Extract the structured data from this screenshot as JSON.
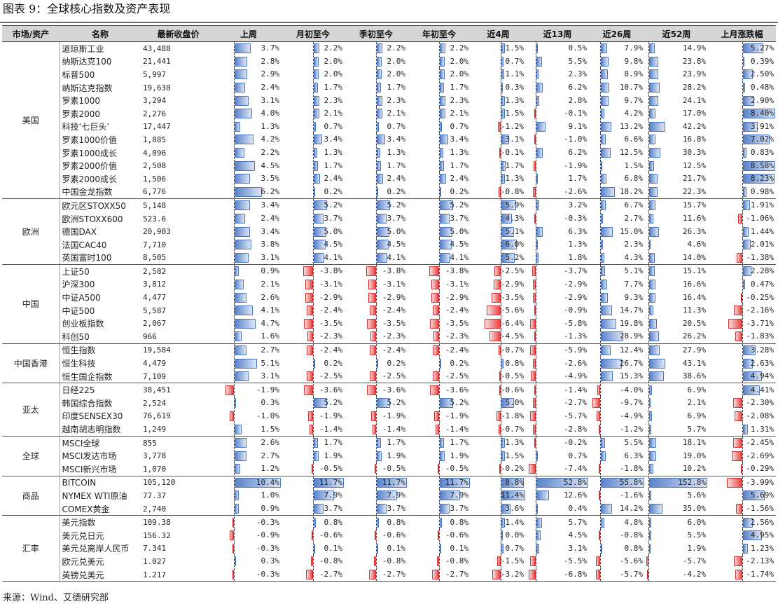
{
  "title": "图表 9：全球核心指数及资产表现",
  "source": "来源：Wind、艾德研究部",
  "accent": {
    "positive_bar": "#5b83c9",
    "negative_bar": "#e84242"
  },
  "columns": [
    "市场/资产",
    "名称",
    "最新收盘价",
    "上周",
    "月初至今",
    "季初至今",
    "年初至今",
    "近4周",
    "近13周",
    "近26周",
    "近52周",
    "上月涨跌幅"
  ],
  "groups": [
    {
      "market": "美国",
      "rows": [
        {
          "name": "道琼斯工业",
          "price": "43,488",
          "values": [
            "3.7%",
            "2.2%",
            "2.2%",
            "2.2%",
            "1.5%",
            "0.5%",
            "7.9%",
            "14.9%",
            "5.27%"
          ]
        },
        {
          "name": "纳斯达克100",
          "price": "21,441",
          "values": [
            "2.8%",
            "2.0%",
            "2.0%",
            "2.0%",
            "0.7%",
            "5.5%",
            "9.8%",
            "23.8%",
            "0.39%"
          ]
        },
        {
          "name": "标普500",
          "price": "5,997",
          "values": [
            "2.9%",
            "2.0%",
            "2.0%",
            "2.0%",
            "1.1%",
            "2.3%",
            "8.9%",
            "23.9%",
            "2.50%"
          ]
        },
        {
          "name": "纳斯达克指数",
          "price": "19,630",
          "values": [
            "2.4%",
            "1.7%",
            "1.7%",
            "1.7%",
            "0.3%",
            "6.2%",
            "10.7%",
            "28.2%",
            "0.48%"
          ]
        },
        {
          "name": "罗素1000",
          "price": "3,294",
          "values": [
            "3.1%",
            "2.3%",
            "2.3%",
            "2.3%",
            "1.3%",
            "2.8%",
            "9.7%",
            "24.1%",
            "2.90%"
          ]
        },
        {
          "name": "罗素2000",
          "price": "2,276",
          "values": [
            "4.0%",
            "2.1%",
            "2.1%",
            "2.1%",
            "1.5%",
            "-0.1%",
            "4.2%",
            "17.0%",
            "8.40%"
          ]
        },
        {
          "name": "科技‘七巨头’",
          "price": "17,447",
          "values": [
            "1.3%",
            "0.7%",
            "0.7%",
            "0.7%",
            "-1.2%",
            "9.1%",
            "13.2%",
            "42.2%",
            "3.91%"
          ]
        },
        {
          "name": "罗素1000价值",
          "price": "1,885",
          "values": [
            "4.2%",
            "3.4%",
            "3.4%",
            "3.4%",
            "3.1%",
            "-1.0%",
            "6.6%",
            "16.8%",
            "7.02%"
          ]
        },
        {
          "name": "罗素1000成长",
          "price": "4,096",
          "values": [
            "2.2%",
            "1.3%",
            "1.3%",
            "1.3%",
            "-0.1%",
            "6.2%",
            "12.5%",
            "30.3%",
            "0.83%"
          ]
        },
        {
          "name": "罗素2000价值",
          "price": "2,508",
          "values": [
            "4.5%",
            "1.7%",
            "1.7%",
            "1.7%",
            "1.7%",
            "-1.9%",
            "1.5%",
            "12.5%",
            "8.58%"
          ]
        },
        {
          "name": "罗素2000成长",
          "price": "1,506",
          "values": [
            "3.5%",
            "2.4%",
            "2.4%",
            "2.4%",
            "1.3%",
            "1.7%",
            "6.8%",
            "21.7%",
            "8.23%"
          ]
        },
        {
          "name": "中国金龙指数",
          "price": "6,776",
          "values": [
            "6.2%",
            "0.2%",
            "0.2%",
            "0.2%",
            "-0.8%",
            "-2.6%",
            "18.2%",
            "22.3%",
            "0.98%"
          ]
        }
      ]
    },
    {
      "market": "欧洲",
      "rows": [
        {
          "name": "欧元区STOXX50",
          "price": "5,148",
          "values": [
            "3.4%",
            "5.2%",
            "5.2%",
            "5.2%",
            "5.9%",
            "3.2%",
            "6.7%",
            "15.7%",
            "1.91%"
          ]
        },
        {
          "name": "欧洲STOXX600",
          "price": "523.6",
          "values": [
            "2.4%",
            "3.7%",
            "3.7%",
            "3.7%",
            "4.3%",
            "-0.3%",
            "2.7%",
            "11.6%",
            "-1.06%"
          ]
        },
        {
          "name": "德国DAX",
          "price": "20,903",
          "values": [
            "3.4%",
            "5.0%",
            "5.0%",
            "5.0%",
            "5.1%",
            "6.3%",
            "15.0%",
            "26.3%",
            "1.44%"
          ]
        },
        {
          "name": "法国CAC40",
          "price": "7,710",
          "values": [
            "3.8%",
            "4.5%",
            "4.5%",
            "4.5%",
            "6.0%",
            "1.3%",
            "2.3%",
            "4.6%",
            "2.01%"
          ]
        },
        {
          "name": "英国富时100",
          "price": "8,505",
          "values": [
            "3.1%",
            "4.1%",
            "4.1%",
            "4.1%",
            "5.2%",
            "1.8%",
            "4.3%",
            "14.0%",
            "-1.38%"
          ]
        }
      ]
    },
    {
      "market": "中国",
      "rows": [
        {
          "name": "上证50",
          "price": "2,582",
          "values": [
            "0.9%",
            "-3.8%",
            "-3.8%",
            "-3.8%",
            "-2.5%",
            "-3.7%",
            "5.1%",
            "15.1%",
            "2.28%"
          ]
        },
        {
          "name": "沪深300",
          "price": "3,812",
          "values": [
            "2.1%",
            "-3.1%",
            "-3.1%",
            "-3.1%",
            "-2.9%",
            "-2.9%",
            "7.7%",
            "16.6%",
            "0.47%"
          ]
        },
        {
          "name": "中证A500",
          "price": "4,477",
          "values": [
            "2.6%",
            "-2.9%",
            "-2.9%",
            "-2.9%",
            "-3.5%",
            "-2.9%",
            "9.3%",
            "16.4%",
            "-0.25%"
          ]
        },
        {
          "name": "中证500",
          "price": "5,587",
          "values": [
            "4.1%",
            "-2.4%",
            "-2.4%",
            "-2.4%",
            "-5.6%",
            "-0.9%",
            "14.7%",
            "11.3%",
            "-2.16%"
          ]
        },
        {
          "name": "创业板指数",
          "price": "2,067",
          "values": [
            "4.7%",
            "-3.5%",
            "-3.5%",
            "-3.5%",
            "-6.4%",
            "-5.8%",
            "19.8%",
            "20.5%",
            "-3.71%"
          ]
        },
        {
          "name": "科创50",
          "price": "966",
          "values": [
            "1.6%",
            "-2.3%",
            "-2.3%",
            "-2.3%",
            "-4.5%",
            "-1.3%",
            "28.9%",
            "26.2%",
            "-1.83%"
          ]
        }
      ]
    },
    {
      "market": "中国香港",
      "rows": [
        {
          "name": "恒生指数",
          "price": "19,584",
          "values": [
            "2.7%",
            "-2.4%",
            "-2.4%",
            "-2.4%",
            "-0.7%",
            "-5.9%",
            "12.4%",
            "27.9%",
            "3.28%"
          ]
        },
        {
          "name": "恒生科技",
          "price": "4,479",
          "values": [
            "5.1%",
            "0.2%",
            "0.2%",
            "0.2%",
            "0.8%",
            "-2.6%",
            "26.7%",
            "43.1%",
            "2.63%"
          ]
        },
        {
          "name": "恒生国企指数",
          "price": "7,109",
          "values": [
            "3.1%",
            "-2.5%",
            "-2.5%",
            "-2.5%",
            "-0.5%",
            "-4.9%",
            "15.3%",
            "38.6%",
            "4.94%"
          ]
        }
      ]
    },
    {
      "market": "亚太",
      "rows": [
        {
          "name": "日经225",
          "price": "38,451",
          "values": [
            "-1.9%",
            "-3.6%",
            "-3.6%",
            "-3.6%",
            "-0.6%",
            "-1.4%",
            "-4.0%",
            "6.9%",
            "4.41%"
          ]
        },
        {
          "name": "韩国综合指数",
          "price": "2,524",
          "values": [
            "0.3%",
            "5.2%",
            "5.2%",
            "5.2%",
            "5.0%",
            "-2.7%",
            "-9.7%",
            "2.1%",
            "-2.30%"
          ]
        },
        {
          "name": "印度SENSEX30",
          "price": "76,619",
          "values": [
            "-1.0%",
            "-1.9%",
            "-1.9%",
            "-1.9%",
            "-1.8%",
            "-5.7%",
            "-4.9%",
            "6.9%",
            "-2.08%"
          ]
        },
        {
          "name": "越南胡志明指数",
          "price": "1,249",
          "values": [
            "1.5%",
            "-1.4%",
            "-1.4%",
            "-1.4%",
            "-0.7%",
            "-2.8%",
            "-1.2%",
            "5.7%",
            "1.31%"
          ]
        }
      ]
    },
    {
      "market": "全球",
      "rows": [
        {
          "name": "MSCI全球",
          "price": "855",
          "values": [
            "2.6%",
            "1.7%",
            "1.7%",
            "1.7%",
            "1.3%",
            "-0.2%",
            "5.5%",
            "18.1%",
            "-2.45%"
          ]
        },
        {
          "name": "MSCI发达市场",
          "price": "3,778",
          "values": [
            "2.7%",
            "1.9%",
            "1.9%",
            "1.9%",
            "1.5%",
            "0.7%",
            "6.3%",
            "19.0%",
            "-2.69%"
          ]
        },
        {
          "name": "MSCI新兴市场",
          "price": "1,070",
          "values": [
            "1.2%",
            "-0.5%",
            "-0.5%",
            "-0.5%",
            "-0.2%",
            "-7.4%",
            "-1.8%",
            "10.2%",
            "-0.29%"
          ]
        }
      ]
    },
    {
      "market": "商品",
      "rows": [
        {
          "name": "BITCOIN",
          "price": "105,120",
          "values": [
            "10.4%",
            "11.7%",
            "11.7%",
            "11.7%",
            "8.8%",
            "52.8%",
            "55.8%",
            "152.8%",
            "-3.99%"
          ]
        },
        {
          "name": "NYMEX WTI原油",
          "price": "77.37",
          "values": [
            "1.0%",
            "7.9%",
            "7.9%",
            "7.9%",
            "11.4%",
            "12.6%",
            "-1.6%",
            "5.6%",
            "5.69%"
          ]
        },
        {
          "name": "COMEX黄金",
          "price": "2,740",
          "values": [
            "0.9%",
            "3.7%",
            "3.7%",
            "3.7%",
            "3.6%",
            "0.4%",
            "14.2%",
            "35.0%",
            "-1.56%"
          ]
        }
      ]
    },
    {
      "market": "汇率",
      "rows": [
        {
          "name": "美元指数",
          "price": "109.38",
          "values": [
            "-0.3%",
            "0.8%",
            "0.8%",
            "0.8%",
            "1.4%",
            "5.7%",
            "4.8%",
            "6.0%",
            "2.56%"
          ]
        },
        {
          "name": "美元兑日元",
          "price": "156.32",
          "values": [
            "-0.9%",
            "-0.6%",
            "-0.6%",
            "-0.6%",
            "0.0%",
            "4.5%",
            "-0.8%",
            "5.5%",
            "4.95%"
          ]
        },
        {
          "name": "美元兑离岸人民币",
          "price": "7.341",
          "values": [
            "-0.3%",
            "0.1%",
            "0.1%",
            "0.1%",
            "0.7%",
            "3.1%",
            "0.8%",
            "1.9%",
            "1.23%"
          ]
        },
        {
          "name": "欧元兑美元",
          "price": "1.027",
          "values": [
            "0.3%",
            "-0.8%",
            "-0.8%",
            "-0.8%",
            "-1.5%",
            "-5.5%",
            "-5.6%",
            "-5.7%",
            "-2.13%"
          ]
        },
        {
          "name": "英镑兑美元",
          "price": "1.217",
          "values": [
            "-0.3%",
            "-2.7%",
            "-2.7%",
            "-2.7%",
            "-3.2%",
            "-6.8%",
            "-5.7%",
            "-4.2%",
            "-1.74%"
          ]
        }
      ]
    }
  ]
}
